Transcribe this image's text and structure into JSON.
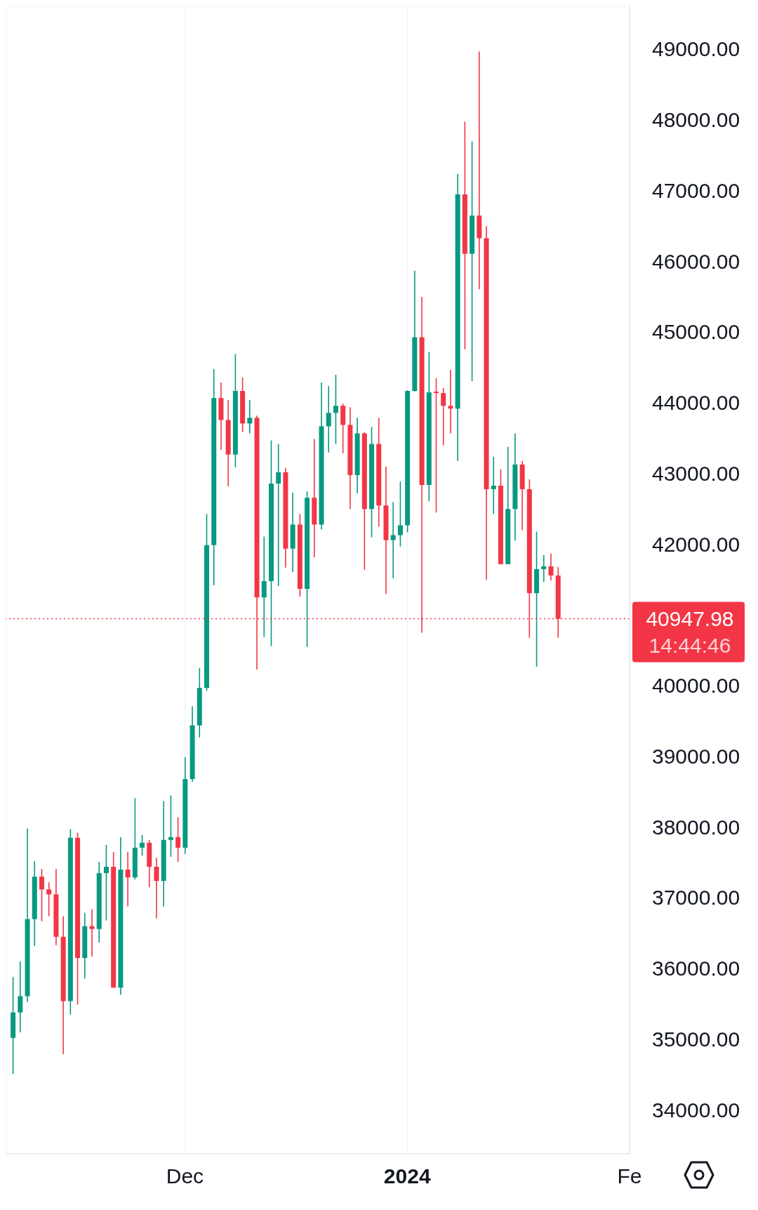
{
  "chart_data": {
    "type": "candlestick",
    "x": [
      "2023-11-07",
      "2023-11-08",
      "2023-11-09",
      "2023-11-10",
      "2023-11-11",
      "2023-11-12",
      "2023-11-13",
      "2023-11-14",
      "2023-11-15",
      "2023-11-16",
      "2023-11-17",
      "2023-11-18",
      "2023-11-19",
      "2023-11-20",
      "2023-11-21",
      "2023-11-22",
      "2023-11-23",
      "2023-11-24",
      "2023-11-25",
      "2023-11-26",
      "2023-11-27",
      "2023-11-28",
      "2023-11-29",
      "2023-11-30",
      "2023-12-01",
      "2023-12-02",
      "2023-12-03",
      "2023-12-04",
      "2023-12-05",
      "2023-12-06",
      "2023-12-07",
      "2023-12-08",
      "2023-12-09",
      "2023-12-10",
      "2023-12-11",
      "2023-12-12",
      "2023-12-13",
      "2023-12-14",
      "2023-12-15",
      "2023-12-16",
      "2023-12-17",
      "2023-12-18",
      "2023-12-19",
      "2023-12-20",
      "2023-12-21",
      "2023-12-22",
      "2023-12-23",
      "2023-12-24",
      "2023-12-25",
      "2023-12-26",
      "2023-12-27",
      "2023-12-28",
      "2023-12-29",
      "2023-12-30",
      "2023-12-31",
      "2024-01-01",
      "2024-01-02",
      "2024-01-03",
      "2024-01-04",
      "2024-01-05",
      "2024-01-06",
      "2024-01-07",
      "2024-01-08",
      "2024-01-09",
      "2024-01-10",
      "2024-01-11",
      "2024-01-12",
      "2024-01-13",
      "2024-01-14",
      "2024-01-15",
      "2024-01-16",
      "2024-01-17",
      "2024-01-18",
      "2024-01-19",
      "2024-01-20",
      "2024-01-21",
      "2024-01-22"
    ],
    "ohlc": [
      [
        35020,
        35880,
        34510,
        35380
      ],
      [
        35380,
        36100,
        35100,
        35610
      ],
      [
        35610,
        37980,
        35530,
        36700
      ],
      [
        36700,
        37520,
        36320,
        37300
      ],
      [
        37300,
        37410,
        36670,
        37120
      ],
      [
        37120,
        37220,
        36740,
        37050
      ],
      [
        37050,
        37410,
        36330,
        36450
      ],
      [
        36450,
        36740,
        34790,
        35540
      ],
      [
        35540,
        37970,
        35350,
        37850
      ],
      [
        37850,
        37920,
        35490,
        36150
      ],
      [
        36150,
        36790,
        35860,
        36600
      ],
      [
        36600,
        36840,
        36170,
        36560
      ],
      [
        36560,
        37510,
        36370,
        37350
      ],
      [
        37350,
        37750,
        36680,
        37440
      ],
      [
        37440,
        37650,
        35730,
        35730
      ],
      [
        35730,
        37860,
        35630,
        37400
      ],
      [
        37400,
        37650,
        36880,
        37290
      ],
      [
        37290,
        38410,
        37260,
        37710
      ],
      [
        37710,
        37890,
        37600,
        37780
      ],
      [
        37780,
        37820,
        37150,
        37440
      ],
      [
        37440,
        37570,
        36710,
        37240
      ],
      [
        37240,
        38370,
        36880,
        37820
      ],
      [
        37820,
        38450,
        37580,
        37860
      ],
      [
        37860,
        38140,
        37510,
        37710
      ],
      [
        37710,
        38990,
        37620,
        38680
      ],
      [
        38680,
        39710,
        38640,
        39440
      ],
      [
        39440,
        40250,
        39270,
        39970
      ],
      [
        39970,
        42430,
        39930,
        41990
      ],
      [
        41990,
        44480,
        41420,
        44070
      ],
      [
        44070,
        44290,
        43340,
        43760
      ],
      [
        43760,
        44040,
        42820,
        43270
      ],
      [
        43270,
        44690,
        43090,
        44170
      ],
      [
        44170,
        44360,
        43590,
        43710
      ],
      [
        43710,
        44040,
        43570,
        43790
      ],
      [
        43790,
        43820,
        40230,
        41250
      ],
      [
        41250,
        42110,
        40690,
        41480
      ],
      [
        41480,
        43470,
        40560,
        42860
      ],
      [
        42860,
        43420,
        41410,
        43020
      ],
      [
        43020,
        43080,
        41670,
        41940
      ],
      [
        41940,
        42730,
        41610,
        42280
      ],
      [
        42280,
        42430,
        41260,
        41370
      ],
      [
        41370,
        42750,
        40550,
        42660
      ],
      [
        42660,
        43490,
        41820,
        42280
      ],
      [
        42280,
        44290,
        42210,
        43670
      ],
      [
        43670,
        44240,
        43300,
        43860
      ],
      [
        43860,
        44400,
        43420,
        43960
      ],
      [
        43960,
        43990,
        43290,
        43690
      ],
      [
        43690,
        43940,
        42500,
        42980
      ],
      [
        42980,
        43790,
        42720,
        43570
      ],
      [
        43570,
        43590,
        41640,
        42500
      ],
      [
        42500,
        43660,
        42100,
        43420
      ],
      [
        43420,
        43790,
        42250,
        42550
      ],
      [
        42550,
        43100,
        41300,
        42060
      ],
      [
        42060,
        42600,
        41520,
        42130
      ],
      [
        42130,
        42890,
        41970,
        42270
      ],
      [
        42270,
        44180,
        42170,
        44170
      ],
      [
        44170,
        45870,
        44160,
        44930
      ],
      [
        44930,
        45500,
        40750,
        42840
      ],
      [
        42840,
        44720,
        42610,
        44150
      ],
      [
        44160,
        44350,
        42450,
        44140
      ],
      [
        44140,
        44210,
        43400,
        43960
      ],
      [
        43960,
        44470,
        43570,
        43920
      ],
      [
        43920,
        47240,
        43180,
        46950
      ],
      [
        46950,
        47980,
        44760,
        46110
      ],
      [
        46110,
        47700,
        44310,
        46650
      ],
      [
        46650,
        48970,
        45610,
        46330
      ],
      [
        46330,
        46500,
        41500,
        42780
      ],
      [
        42780,
        43240,
        42430,
        42830
      ],
      [
        42830,
        43060,
        41720,
        41720
      ],
      [
        41720,
        43380,
        41720,
        42500
      ],
      [
        42500,
        43570,
        42050,
        43130
      ],
      [
        43130,
        43180,
        42200,
        42780
      ],
      [
        42780,
        42920,
        40680,
        41310
      ],
      [
        41310,
        42180,
        40270,
        41650
      ],
      [
        41650,
        41850,
        41470,
        41690
      ],
      [
        41690,
        41870,
        41490,
        41560
      ],
      [
        41560,
        41680,
        40680,
        40947.98
      ]
    ],
    "colors": [
      "#089981",
      "#089981",
      "#089981",
      "#089981",
      "#f23645",
      "#f23645",
      "#f23645",
      "#f23645",
      "#089981",
      "#f23645",
      "#089981",
      "#f23645",
      "#089981",
      "#089981",
      "#f23645",
      "#089981",
      "#f23645",
      "#089981",
      "#089981",
      "#f23645",
      "#f23645",
      "#089981",
      "#089981",
      "#f23645",
      "#089981",
      "#089981",
      "#089981",
      "#089981",
      "#089981",
      "#f23645",
      "#f23645",
      "#089981",
      "#f23645",
      "#089981",
      "#f23645",
      "#089981",
      "#089981",
      "#089981",
      "#f23645",
      "#089981",
      "#f23645",
      "#089981",
      "#f23645",
      "#089981",
      "#089981",
      "#089981",
      "#f23645",
      "#f23645",
      "#089981",
      "#f23645",
      "#089981",
      "#f23645",
      "#f23645",
      "#089981",
      "#089981",
      "#089981",
      "#089981",
      "#f23645",
      "#089981",
      "#f23645",
      "#f23645",
      "#f23645",
      "#089981",
      "#f23645",
      "#089981",
      "#f23645",
      "#f23645",
      "#089981",
      "#f23645",
      "#089981",
      "#089981",
      "#f23645",
      "#f23645",
      "#089981",
      "#089981",
      "#f23645",
      "#f23645"
    ],
    "xlim": [
      "2023-11-06",
      "2024-02-01"
    ],
    "xticks": [
      {
        "value": "2023-12-01",
        "label": "Dec"
      },
      {
        "value": "2024-01-01",
        "label": "2024"
      },
      {
        "value": "2024-02-01",
        "label": "Fe"
      }
    ],
    "ylim": [
      33380,
      49620
    ],
    "yticks": [
      {
        "value": 34000,
        "label": "34000.00"
      },
      {
        "value": 35000,
        "label": "35000.00"
      },
      {
        "value": 36000,
        "label": "36000.00"
      },
      {
        "value": 37000,
        "label": "37000.00"
      },
      {
        "value": 38000,
        "label": "38000.00"
      },
      {
        "value": 39000,
        "label": "39000.00"
      },
      {
        "value": 40000,
        "label": "40000.00"
      },
      {
        "value": 42000,
        "label": "42000.00"
      },
      {
        "value": 43000,
        "label": "43000.00"
      },
      {
        "value": 44000,
        "label": "44000.00"
      },
      {
        "value": 45000,
        "label": "45000.00"
      },
      {
        "value": 46000,
        "label": "46000.00"
      },
      {
        "value": 47000,
        "label": "47000.00"
      },
      {
        "value": 48000,
        "label": "48000.00"
      },
      {
        "value": 49000,
        "label": "49000.00"
      }
    ],
    "grid": true,
    "ref_lines": [
      {
        "axis": "y",
        "value": 40947.98,
        "label": "40947.98",
        "color": "#f23645",
        "line_style": "dotted"
      }
    ],
    "annotations": [
      "14:44:46"
    ]
  }
}
